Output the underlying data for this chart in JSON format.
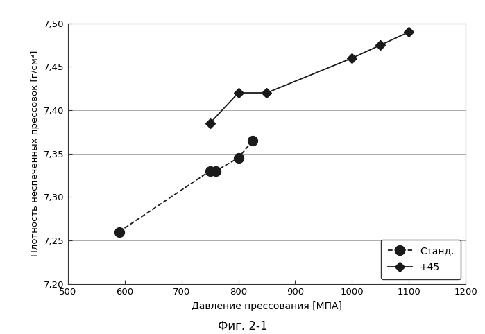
{
  "stand_x": [
    590,
    750,
    760,
    800,
    825
  ],
  "stand_y": [
    7.26,
    7.33,
    7.33,
    7.345,
    7.365
  ],
  "plus45_x": [
    750,
    800,
    850,
    1000,
    1050,
    1100
  ],
  "plus45_y": [
    7.385,
    7.42,
    7.42,
    7.46,
    7.475,
    7.49
  ],
  "xlabel": "Давление прессования [МПА]",
  "ylabel": "Плотность неспеченных прессовок [г/см³]",
  "caption": "Фиг. 2-1",
  "legend_stand": "Станд.",
  "legend_plus45": "+45",
  "xlim": [
    500,
    1200
  ],
  "ylim": [
    7.2,
    7.5
  ],
  "xticks": [
    500,
    600,
    700,
    800,
    900,
    1000,
    1100,
    1200
  ],
  "yticks": [
    7.2,
    7.25,
    7.3,
    7.35,
    7.4,
    7.45,
    7.5
  ],
  "bg_color": "#ffffff",
  "line_color": "#1a1a1a",
  "grid_color": "#aaaaaa"
}
